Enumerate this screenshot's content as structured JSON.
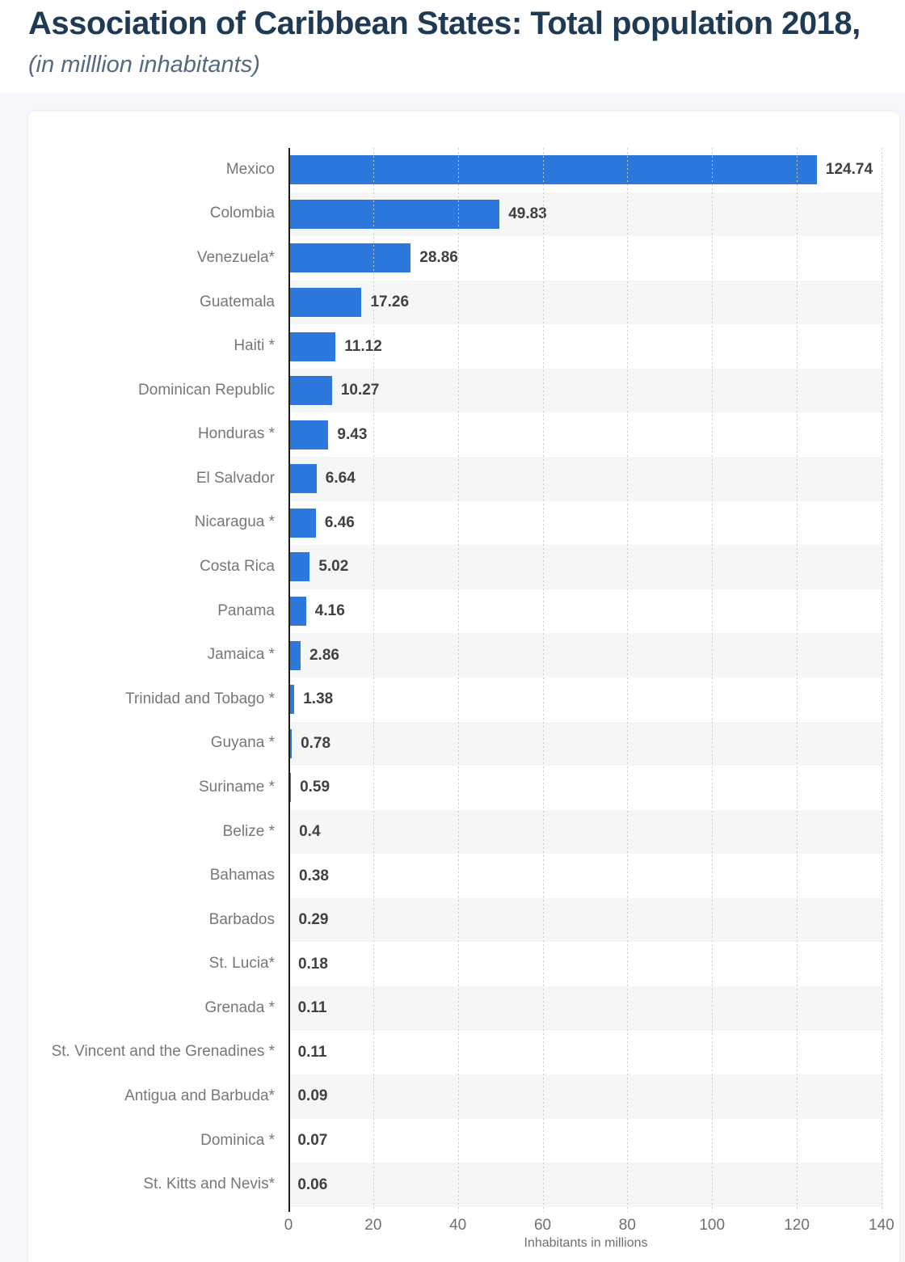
{
  "header": {
    "title": "Association of Caribbean States: Total population 2018,",
    "subtitle": "(in milllion inhabitants)"
  },
  "chart_data": {
    "type": "bar",
    "orientation": "horizontal",
    "title": "Association of Caribbean States: Total population 2018,",
    "subtitle": "(in milllion inhabitants)",
    "xlabel": "Inhabitants in millions",
    "ylabel": "",
    "xlim": [
      0,
      140.4
    ],
    "xticks": [
      0,
      20,
      40,
      60,
      80,
      100,
      120,
      140
    ],
    "grid": true,
    "legend": false,
    "row_striping": "every second row shaded",
    "categories": [
      "Mexico",
      "Colombia",
      "Venezuela*",
      "Guatemala",
      "Haiti *",
      "Dominican Republic",
      "Honduras *",
      "El Salvador",
      "Nicaragua *",
      "Costa Rica",
      "Panama",
      "Jamaica *",
      "Trinidad and Tobago *",
      "Guyana *",
      "Suriname *",
      "Belize *",
      "Bahamas",
      "Barbados",
      "St. Lucia*",
      "Grenada *",
      "St. Vincent and the Grenadines *",
      "Antigua and Barbuda*",
      "Dominica *",
      "St. Kitts and Nevis*"
    ],
    "values": [
      124.74,
      49.83,
      28.86,
      17.26,
      11.12,
      10.27,
      9.43,
      6.64,
      6.46,
      5.02,
      4.16,
      2.86,
      1.38,
      0.78,
      0.59,
      0.4,
      0.38,
      0.29,
      0.18,
      0.11,
      0.11,
      0.09,
      0.07,
      0.06
    ],
    "value_labels": [
      "124.74",
      "49.83",
      "28.86",
      "17.26",
      "11.12",
      "10.27",
      "9.43",
      "6.64",
      "6.46",
      "5.02",
      "4.16",
      "2.86",
      "1.38",
      "0.78",
      "0.59",
      "0.4",
      "0.38",
      "0.29",
      "0.18",
      "0.11",
      "0.11",
      "0.09",
      "0.07",
      "0.06"
    ]
  },
  "colors": {
    "bar": "#2d78dd",
    "stripe": "#f5f6f6",
    "axis_line": "#1d1d1d",
    "gridline": "#c9c9c9",
    "title": "#1f3a54",
    "subtitle": "#56697f",
    "category_label": "#75777a",
    "value_label": "#404040",
    "tick_label": "#6f6f6f",
    "page_background": "#f5f7fa",
    "card_background": "#ffffff"
  }
}
